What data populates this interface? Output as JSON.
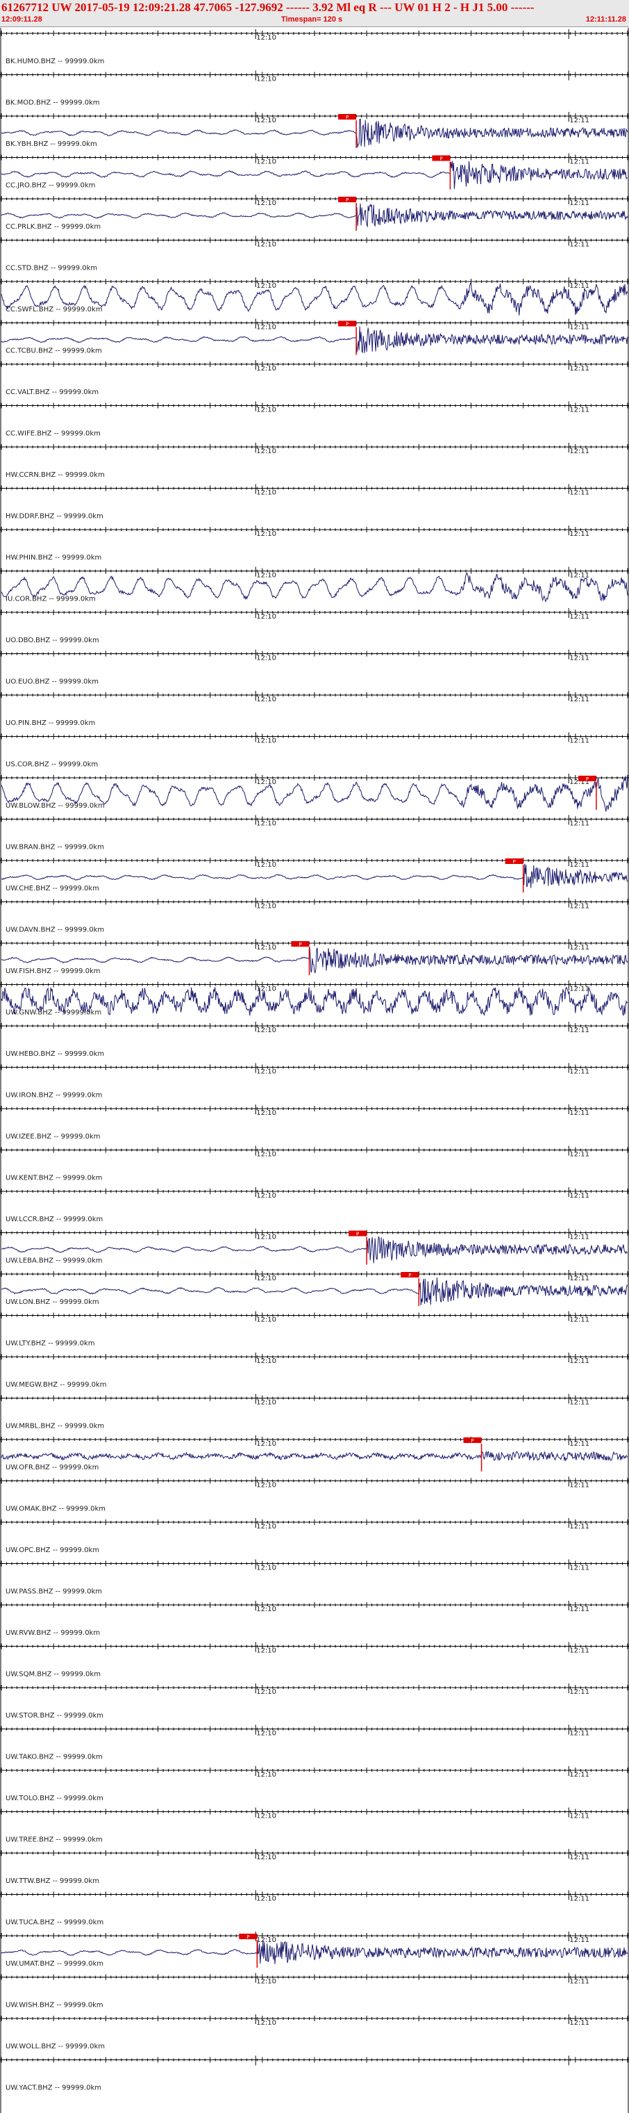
{
  "header": {
    "title": "61267712 UW 2017-05-19 12:09:21.28   47.7065 -127.9692 ------   3.92 Ml  eq  R ---      UW 01  H   2  -  H J1     5.00 ------",
    "start_time": "12:09:11.28",
    "timespan": "Timespan= 120 s",
    "end_time": "12:11:11.28"
  },
  "chart_data": {
    "type": "line",
    "time_range_s": [
      0,
      120
    ],
    "minute_labels": [
      {
        "t": 48.72,
        "label": "12:10"
      },
      {
        "t": 108.72,
        "label": "12:11"
      }
    ],
    "traces": [
      {
        "label": "BK.HUMO.BHZ -- 99999.0km",
        "tick_label": "12:10",
        "tick_label2": "",
        "has_data": false,
        "pick_t": null,
        "pick_label": "",
        "amp": 0
      },
      {
        "label": "BK.MOD.BHZ -- 99999.0km",
        "tick_label": "12:10",
        "tick_label2": "",
        "has_data": false,
        "pick_t": null,
        "pick_label": "",
        "amp": 0
      },
      {
        "label": "BK.YBH.BHZ -- 99999.0km",
        "tick_label": "12:10",
        "tick_label2": "12:11",
        "has_data": true,
        "pick_t": 68,
        "pick_label": "P",
        "amp": 0.55,
        "style": "quiet"
      },
      {
        "label": "CC.JRO.BHZ -- 99999.0km",
        "tick_label": "12:10",
        "tick_label2": "12:11",
        "has_data": true,
        "pick_t": 86,
        "pick_label": "P",
        "amp": 0.6,
        "style": "quiet"
      },
      {
        "label": "CC.PRLK.BHZ -- 99999.0km",
        "tick_label": "12:10",
        "tick_label2": "12:11",
        "has_data": true,
        "pick_t": 68,
        "pick_label": "P",
        "amp": 0.5,
        "style": "quiet"
      },
      {
        "label": "CC.STD.BHZ -- 99999.0km",
        "tick_label": "12:10",
        "tick_label2": "12:11",
        "has_data": false,
        "pick_t": null,
        "pick_label": "",
        "amp": 0
      },
      {
        "label": "CC.SWFL.BHZ -- 99999.0km",
        "tick_label": "12:10",
        "tick_label2": "12:11",
        "has_data": true,
        "pick_t": null,
        "pick_label": "",
        "amp": 0.75,
        "style": "microseism"
      },
      {
        "label": "CC.TCBU.BHZ -- 99999.0km",
        "tick_label": "12:10",
        "tick_label2": "12:11",
        "has_data": true,
        "pick_t": 68,
        "pick_label": "P",
        "amp": 0.55,
        "style": "quiet"
      },
      {
        "label": "CC.VALT.BHZ -- 99999.0km",
        "tick_label": "12:10",
        "tick_label2": "12:11",
        "has_data": false,
        "pick_t": null,
        "pick_label": "",
        "amp": 0
      },
      {
        "label": "CC.WIFE.BHZ -- 99999.0km",
        "tick_label": "12:10",
        "tick_label2": "12:11",
        "has_data": false,
        "pick_t": null,
        "pick_label": "",
        "amp": 0
      },
      {
        "label": "HW.CCRN.BHZ -- 99999.0km",
        "tick_label": "12:10",
        "tick_label2": "12:11",
        "has_data": false,
        "pick_t": null,
        "pick_label": "",
        "amp": 0
      },
      {
        "label": "HW.DDRF.BHZ -- 99999.0km",
        "tick_label": "12:10",
        "tick_label2": "12:11",
        "has_data": false,
        "pick_t": null,
        "pick_label": "",
        "amp": 0
      },
      {
        "label": "HW.PHIN.BHZ -- 99999.0km",
        "tick_label": "12:10",
        "tick_label2": "12:11",
        "has_data": false,
        "pick_t": null,
        "pick_label": "",
        "amp": 0
      },
      {
        "label": "IU.COR.BHZ -- 99999.0km",
        "tick_label": "12:10",
        "tick_label2": "12:11",
        "has_data": true,
        "pick_t": null,
        "pick_label": "",
        "amp": 0.65,
        "style": "microseism"
      },
      {
        "label": "UO.DBO.BHZ -- 99999.0km",
        "tick_label": "12:10",
        "tick_label2": "12:11",
        "has_data": false,
        "pick_t": null,
        "pick_label": "",
        "amp": 0
      },
      {
        "label": "UO.EUO.BHZ -- 99999.0km",
        "tick_label": "12:10",
        "tick_label2": "12:11",
        "has_data": false,
        "pick_t": null,
        "pick_label": "",
        "amp": 0
      },
      {
        "label": "UO.PIN.BHZ -- 99999.0km",
        "tick_label": "12:10",
        "tick_label2": "12:11",
        "has_data": false,
        "pick_t": null,
        "pick_label": "",
        "amp": 0
      },
      {
        "label": "US.COR.BHZ -- 99999.0km",
        "tick_label": "12:10",
        "tick_label2": "12:11",
        "has_data": false,
        "pick_t": null,
        "pick_label": "",
        "amp": 0
      },
      {
        "label": "UW.BLOW.BHZ -- 99999.0km",
        "tick_label": "12:10",
        "tick_label2": "12:11",
        "has_data": true,
        "pick_t": 114,
        "pick_label": "P",
        "amp": 0.7,
        "style": "microseism"
      },
      {
        "label": "UW.BRAN.BHZ -- 99999.0km",
        "tick_label": "12:10",
        "tick_label2": "12:11",
        "has_data": false,
        "pick_t": null,
        "pick_label": "",
        "amp": 0
      },
      {
        "label": "UW.CHE.BHZ -- 99999.0km",
        "tick_label": "12:10",
        "tick_label2": "12:11",
        "has_data": true,
        "pick_t": 100,
        "pick_label": "P",
        "amp": 0.5,
        "style": "quiet"
      },
      {
        "label": "UW.DAVN.BHZ -- 99999.0km",
        "tick_label": "12:10",
        "tick_label2": "12:11",
        "has_data": false,
        "pick_t": null,
        "pick_label": "",
        "amp": 0
      },
      {
        "label": "UW.FISH.BHZ -- 99999.0km",
        "tick_label": "12:10",
        "tick_label2": "12:11",
        "has_data": true,
        "pick_t": 59,
        "pick_label": "P",
        "amp": 0.55,
        "style": "quiet"
      },
      {
        "label": "UW.GNW.BHZ -- 99999.0km",
        "tick_label": "12:10",
        "tick_label2": "12:11",
        "has_data": true,
        "pick_t": null,
        "pick_label": "",
        "amp": 0.75,
        "style": "noisy"
      },
      {
        "label": "UW.HEBO.BHZ -- 99999.0km",
        "tick_label": "12:10",
        "tick_label2": "12:11",
        "has_data": false,
        "pick_t": null,
        "pick_label": "",
        "amp": 0
      },
      {
        "label": "UW.IRON.BHZ -- 99999.0km",
        "tick_label": "12:10",
        "tick_label2": "12:11",
        "has_data": false,
        "pick_t": null,
        "pick_label": "",
        "amp": 0
      },
      {
        "label": "UW.IZEE.BHZ -- 99999.0km",
        "tick_label": "12:10",
        "tick_label2": "12:11",
        "has_data": false,
        "pick_t": null,
        "pick_label": "",
        "amp": 0
      },
      {
        "label": "UW.KENT.BHZ -- 99999.0km",
        "tick_label": "12:10",
        "tick_label2": "12:11",
        "has_data": false,
        "pick_t": null,
        "pick_label": "",
        "amp": 0
      },
      {
        "label": "UW.LCCR.BHZ -- 99999.0km",
        "tick_label": "12:10",
        "tick_label2": "12:11",
        "has_data": false,
        "pick_t": null,
        "pick_label": "",
        "amp": 0
      },
      {
        "label": "UW.LEBA.BHZ -- 99999.0km",
        "tick_label": "12:10",
        "tick_label2": "12:11",
        "has_data": true,
        "pick_t": 70,
        "pick_label": "P",
        "amp": 0.55,
        "style": "quiet"
      },
      {
        "label": "UW.LON.BHZ -- 99999.0km",
        "tick_label": "12:10",
        "tick_label2": "12:11",
        "has_data": true,
        "pick_t": 80,
        "pick_label": "P",
        "amp": 0.6,
        "style": "quiet"
      },
      {
        "label": "UW.LTY.BHZ -- 99999.0km",
        "tick_label": "12:10",
        "tick_label2": "12:11",
        "has_data": false,
        "pick_t": null,
        "pick_label": "",
        "amp": 0
      },
      {
        "label": "UW.MEGW.BHZ -- 99999.0km",
        "tick_label": "12:10",
        "tick_label2": "12:11",
        "has_data": false,
        "pick_t": null,
        "pick_label": "",
        "amp": 0
      },
      {
        "label": "UW.MRBL.BHZ -- 99999.0km",
        "tick_label": "12:10",
        "tick_label2": "12:11",
        "has_data": false,
        "pick_t": null,
        "pick_label": "",
        "amp": 0
      },
      {
        "label": "UW.OFR.BHZ -- 99999.0km",
        "tick_label": "12:10",
        "tick_label2": "12:11",
        "has_data": true,
        "pick_t": 92,
        "pick_label": "P",
        "amp": 0.45,
        "style": "noisyfine"
      },
      {
        "label": "UW.OMAK.BHZ -- 99999.0km",
        "tick_label": "12:10",
        "tick_label2": "12:11",
        "has_data": false,
        "pick_t": null,
        "pick_label": "",
        "amp": 0
      },
      {
        "label": "UW.OPC.BHZ -- 99999.0km",
        "tick_label": "12:10",
        "tick_label2": "12:11",
        "has_data": false,
        "pick_t": null,
        "pick_label": "",
        "amp": 0
      },
      {
        "label": "UW.PASS.BHZ -- 99999.0km",
        "tick_label": "12:10",
        "tick_label2": "12:11",
        "has_data": false,
        "pick_t": null,
        "pick_label": "",
        "amp": 0
      },
      {
        "label": "UW.RVW.BHZ -- 99999.0km",
        "tick_label": "12:10",
        "tick_label2": "12:11",
        "has_data": false,
        "pick_t": null,
        "pick_label": "",
        "amp": 0
      },
      {
        "label": "UW.SQM.BHZ -- 99999.0km",
        "tick_label": "12:10",
        "tick_label2": "12:11",
        "has_data": false,
        "pick_t": null,
        "pick_label": "",
        "amp": 0
      },
      {
        "label": "UW.STOR.BHZ -- 99999.0km",
        "tick_label": "12:10",
        "tick_label2": "12:11",
        "has_data": false,
        "pick_t": null,
        "pick_label": "",
        "amp": 0
      },
      {
        "label": "UW.TAKO.BHZ -- 99999.0km",
        "tick_label": "12:10",
        "tick_label2": "12:11",
        "has_data": false,
        "pick_t": null,
        "pick_label": "",
        "amp": 0
      },
      {
        "label": "UW.TOLO.BHZ -- 99999.0km",
        "tick_label": "12:10",
        "tick_label2": "12:11",
        "has_data": false,
        "pick_t": null,
        "pick_label": "",
        "amp": 0
      },
      {
        "label": "UW.TREE.BHZ -- 99999.0km",
        "tick_label": "12:10",
        "tick_label2": "12:11",
        "has_data": false,
        "pick_t": null,
        "pick_label": "",
        "amp": 0
      },
      {
        "label": "UW.TTW.BHZ -- 99999.0km",
        "tick_label": "12:10",
        "tick_label2": "12:11",
        "has_data": false,
        "pick_t": null,
        "pick_label": "",
        "amp": 0
      },
      {
        "label": "UW.TUCA.BHZ -- 99999.0km",
        "tick_label": "12:10",
        "tick_label2": "12:11",
        "has_data": false,
        "pick_t": null,
        "pick_label": "",
        "amp": 0
      },
      {
        "label": "UW.UMAT.BHZ -- 99999.0km",
        "tick_label": "12:10",
        "tick_label2": "12:11",
        "has_data": true,
        "pick_t": 49,
        "pick_label": "P",
        "amp": 0.55,
        "style": "quiet"
      },
      {
        "label": "UW.WISH.BHZ -- 99999.0km",
        "tick_label": "12:10",
        "tick_label2": "12:11",
        "has_data": false,
        "pick_t": null,
        "pick_label": "",
        "amp": 0
      },
      {
        "label": "UW.WOLL.BHZ -- 99999.0km",
        "tick_label": "12:10",
        "tick_label2": "12:11",
        "has_data": false,
        "pick_t": null,
        "pick_label": "",
        "amp": 0
      },
      {
        "label": "UW.YACT.BHZ -- 99999.0km",
        "tick_label": "",
        "tick_label2": "",
        "has_data": false,
        "pick_t": null,
        "pick_label": "",
        "amp": 0
      }
    ],
    "colors": {
      "trace": "#1a1a6e",
      "pick": "#e00000",
      "axis": "#000000",
      "header_text": "#e00000"
    }
  }
}
